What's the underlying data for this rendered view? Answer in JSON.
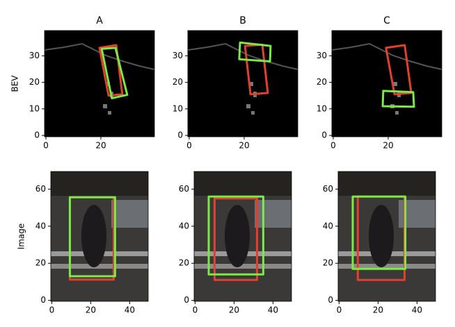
{
  "chart_data": [
    {
      "type": "image",
      "title": "A",
      "ylabel": "BEV",
      "xlim": [
        -0.5,
        39.5
      ],
      "ylim": [
        39.5,
        -0.5
      ],
      "xticks": [
        0,
        20
      ],
      "yticks": [
        0,
        10,
        20,
        30
      ],
      "boxes": [
        {
          "color": "#e0412f",
          "x": [
            22.8,
            27.8,
            25.6,
            19.5
          ],
          "y": [
            15,
            15.5,
            34,
            33
          ]
        },
        {
          "color": "#7de84a",
          "x": [
            24,
            29.6,
            25.3,
            20.3
          ],
          "y": [
            14,
            15.3,
            33,
            32.6
          ]
        }
      ]
    },
    {
      "type": "image",
      "title": "B",
      "xlim": [
        -0.5,
        39.5
      ],
      "ylim": [
        39.5,
        -0.5
      ],
      "xticks": [
        0,
        20
      ],
      "yticks": [
        0,
        10,
        20,
        30
      ],
      "boxes": [
        {
          "color": "#e0412f",
          "x": [
            22.3,
            28.6,
            26.6,
            20.3
          ],
          "y": [
            15.5,
            16,
            34.2,
            33.7
          ]
        },
        {
          "color": "#7de84a",
          "x": [
            18.2,
            29.4,
            29.6,
            18.5
          ],
          "y": [
            28.7,
            27.9,
            33.7,
            35
          ]
        }
      ]
    },
    {
      "type": "image",
      "title": "C",
      "xlim": [
        -0.5,
        39.5
      ],
      "ylim": [
        39.5,
        -0.5
      ],
      "xticks": [
        0,
        20
      ],
      "yticks": [
        0,
        10,
        20,
        30
      ],
      "boxes": [
        {
          "color": "#e0412f",
          "x": [
            22.3,
            28.4,
            26,
            19.2
          ],
          "y": [
            15.5,
            16,
            34,
            33
          ]
        },
        {
          "color": "#7de84a",
          "x": [
            18,
            29.4,
            29.1,
            18.2
          ],
          "y": [
            11,
            10.8,
            16.3,
            16.8
          ]
        }
      ]
    },
    {
      "type": "image",
      "ylabel": "Image",
      "xlim": [
        -0.5,
        49.5
      ],
      "ylim": [
        69.5,
        -0.5
      ],
      "xticks": [
        0,
        20,
        40
      ],
      "yticks": [
        0,
        20,
        40,
        60
      ],
      "boxes": [
        {
          "color": "#e0412f",
          "x": [
            9.3,
            31.8,
            31.8,
            9.3
          ],
          "y": [
            11.2,
            11.2,
            55.6,
            55.6
          ]
        },
        {
          "color": "#7de84a",
          "x": [
            9.3,
            32.5,
            32.5,
            9.3
          ],
          "y": [
            13,
            13,
            55.6,
            55.6
          ]
        }
      ]
    },
    {
      "type": "image",
      "xlim": [
        -0.5,
        49.5
      ],
      "ylim": [
        69.5,
        -0.5
      ],
      "xticks": [
        0,
        20,
        40
      ],
      "yticks": [
        0,
        20,
        40,
        60
      ],
      "boxes": [
        {
          "color": "#e0412f",
          "x": [
            10,
            31.8,
            31.8,
            10
          ],
          "y": [
            11,
            11,
            55,
            55
          ]
        },
        {
          "color": "#7de84a",
          "x": [
            7,
            35,
            35,
            7
          ],
          "y": [
            14,
            14,
            56,
            56
          ]
        }
      ]
    },
    {
      "type": "image",
      "xlim": [
        -0.5,
        49.5
      ],
      "ylim": [
        69.5,
        -0.5
      ],
      "xticks": [
        0,
        20,
        40
      ],
      "yticks": [
        0,
        20,
        40,
        60
      ],
      "boxes": [
        {
          "color": "#e0412f",
          "x": [
            9.6,
            33.6,
            33.6,
            9.6
          ],
          "y": [
            11,
            11,
            56,
            56
          ]
        },
        {
          "color": "#7de84a",
          "x": [
            7,
            34,
            34,
            7
          ],
          "y": [
            17,
            17,
            56,
            56
          ]
        }
      ]
    }
  ]
}
